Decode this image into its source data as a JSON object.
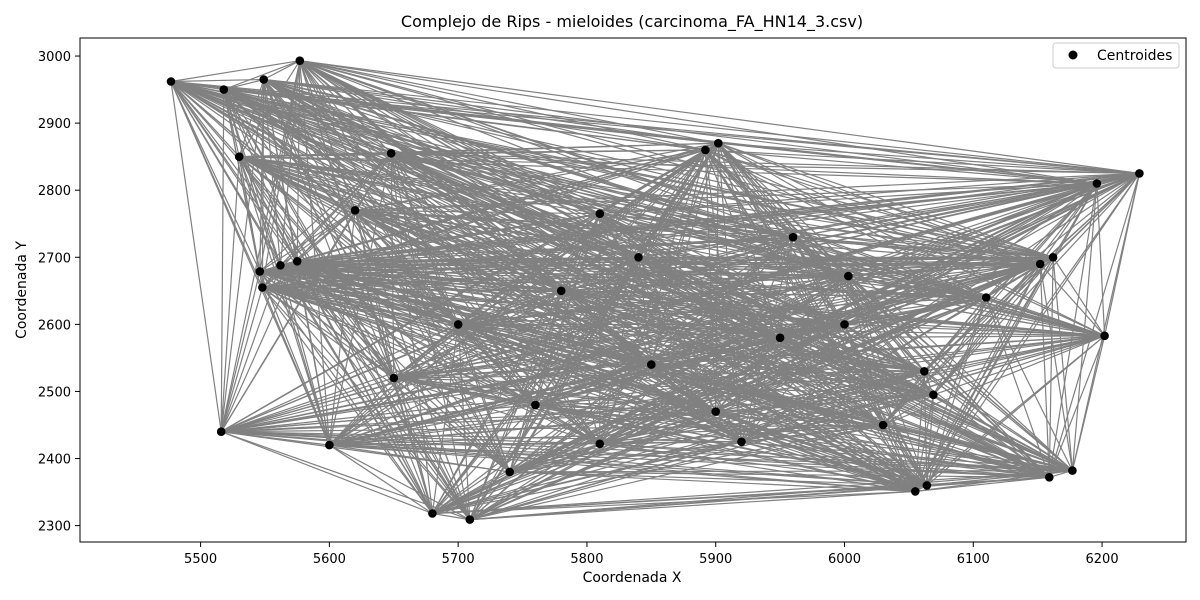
{
  "chart_data": {
    "type": "scatter",
    "title": "Complejo de Rips - mieloides (carcinoma_FA_HN14_3.csv)",
    "xlabel": "Coordenada X",
    "ylabel": "Coordenada Y",
    "xlim": [
      5500,
      6200
    ],
    "ylim": [
      2300,
      3000
    ],
    "xticks": [
      "5500",
      "5600",
      "5700",
      "5800",
      "5900",
      "6000",
      "6100",
      "6200"
    ],
    "yticks": [
      "2300",
      "2400",
      "2500",
      "2600",
      "2700",
      "2800",
      "2900",
      "3000"
    ],
    "grid": false,
    "legend": {
      "position": "top-right",
      "entries": [
        "Centroides"
      ]
    },
    "colors": {
      "points": "#000000",
      "edges": "#808080"
    },
    "series": [
      {
        "name": "Centroides",
        "points": [
          {
            "x": 5477,
            "y": 2962
          },
          {
            "x": 5518,
            "y": 2950
          },
          {
            "x": 5549,
            "y": 2965
          },
          {
            "x": 5577,
            "y": 2993
          },
          {
            "x": 5546,
            "y": 2679
          },
          {
            "x": 5548,
            "y": 2655
          },
          {
            "x": 5562,
            "y": 2688
          },
          {
            "x": 5575,
            "y": 2694
          },
          {
            "x": 5516,
            "y": 2440
          },
          {
            "x": 5600,
            "y": 2420
          },
          {
            "x": 5648,
            "y": 2855
          },
          {
            "x": 5680,
            "y": 2318
          },
          {
            "x": 5709,
            "y": 2309
          },
          {
            "x": 5810,
            "y": 2422
          },
          {
            "x": 5920,
            "y": 2425
          },
          {
            "x": 5892,
            "y": 2860
          },
          {
            "x": 5902,
            "y": 2870
          },
          {
            "x": 5810,
            "y": 2765
          },
          {
            "x": 6003,
            "y": 2672
          },
          {
            "x": 6055,
            "y": 2351
          },
          {
            "x": 6064,
            "y": 2360
          },
          {
            "x": 6069,
            "y": 2495
          },
          {
            "x": 6062,
            "y": 2530
          },
          {
            "x": 6159,
            "y": 2372
          },
          {
            "x": 6177,
            "y": 2382
          },
          {
            "x": 6162,
            "y": 2700
          },
          {
            "x": 6152,
            "y": 2690
          },
          {
            "x": 6202,
            "y": 2583
          },
          {
            "x": 6229,
            "y": 2825
          },
          {
            "x": 6196,
            "y": 2810
          },
          {
            "x": 5620,
            "y": 2770
          },
          {
            "x": 5700,
            "y": 2600
          },
          {
            "x": 5760,
            "y": 2480
          },
          {
            "x": 5850,
            "y": 2540
          },
          {
            "x": 5960,
            "y": 2730
          },
          {
            "x": 6000,
            "y": 2600
          },
          {
            "x": 5650,
            "y": 2520
          },
          {
            "x": 5780,
            "y": 2650
          },
          {
            "x": 5900,
            "y": 2470
          },
          {
            "x": 6110,
            "y": 2640
          },
          {
            "x": 5530,
            "y": 2850
          },
          {
            "x": 5740,
            "y": 2380
          },
          {
            "x": 5840,
            "y": 2700
          },
          {
            "x": 6030,
            "y": 2450
          },
          {
            "x": 5950,
            "y": 2580
          }
        ]
      }
    ]
  }
}
